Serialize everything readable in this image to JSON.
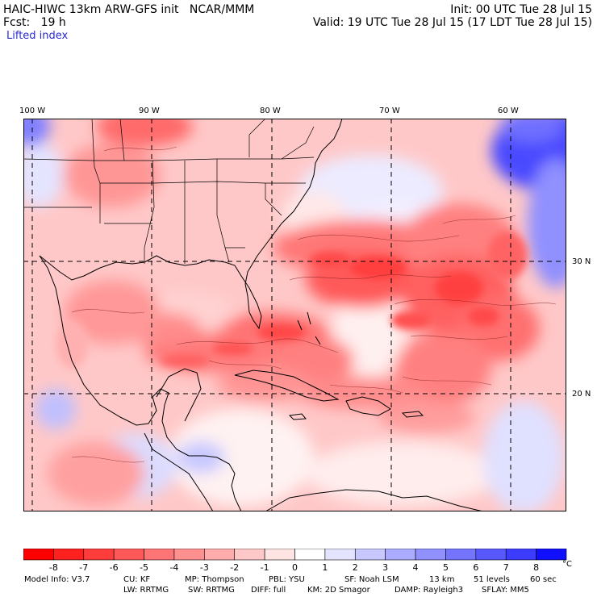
{
  "header": {
    "left_line1": "HAIC-HIWC 13km ARW-GFS init   NCAR/MMM",
    "left_line2": "Fcst:   19 h",
    "field": "Lifted index",
    "init": "Init: 00 UTC Tue 28 Jul 15",
    "valid": "Valid: 19 UTC Tue 28 Jul 15 (17 LDT Tue 28 Jul 15)"
  },
  "map": {
    "lon_labels": [
      "100 W",
      "90 W",
      "80 W",
      "70 W",
      "60 W"
    ],
    "lat_labels": [
      "30 N",
      "20 N"
    ],
    "lon_ticks": [
      -100,
      -90,
      -80,
      -70,
      -60
    ],
    "lat_ticks": [
      30,
      20
    ]
  },
  "colorbar": {
    "labels": [
      "-8",
      "-7",
      "-6",
      "-5",
      "-4",
      "-3",
      "-2",
      "-1",
      "0",
      "1",
      "2",
      "3",
      "4",
      "5",
      "6",
      "7",
      "8"
    ],
    "unit": "°C",
    "colors": [
      "#ff0000",
      "#ff2020",
      "#ff3c3c",
      "#ff5858",
      "#ff7474",
      "#ff9090",
      "#ffacac",
      "#ffc8c8",
      "#ffe4e4",
      "#ffffff",
      "#e4e4ff",
      "#c8c8ff",
      "#acacff",
      "#9090ff",
      "#7474ff",
      "#5858ff",
      "#3c3cff",
      "#1010ff"
    ]
  },
  "footer": {
    "line1": [
      "Model Info: V3.7",
      "CU: KF",
      "MP: Thompson",
      "PBL: YSU",
      "SF: Noah LSM",
      "13 km",
      "51 levels",
      "60 sec"
    ],
    "line2": [
      "LW: RRTMG",
      "SW: RRTMG",
      "DIFF: full",
      "KM: 2D Smagor",
      "DAMP: Rayleigh3",
      "SFLAY: MM5"
    ]
  }
}
